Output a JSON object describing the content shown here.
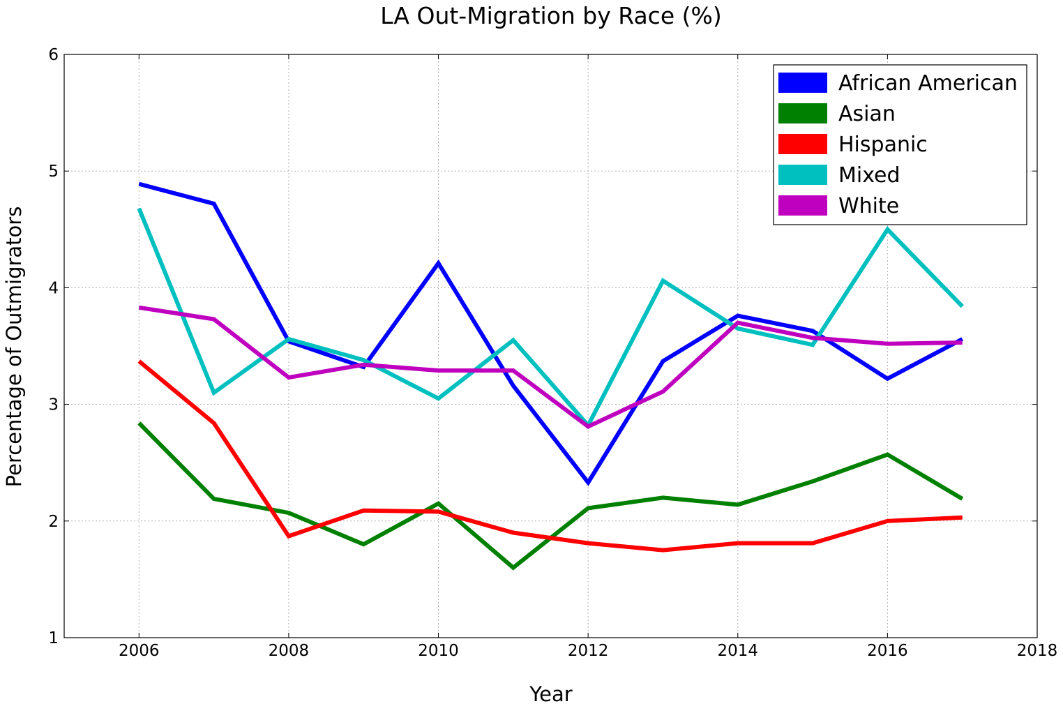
{
  "chart_data": {
    "type": "line",
    "title": "LA Out-Migration by Race (%)",
    "xlabel": "Year",
    "ylabel": "Percentage of Outmigrators",
    "xlim": [
      2005,
      2018
    ],
    "ylim": [
      1,
      6
    ],
    "x_ticks": [
      "2006",
      "2008",
      "2010",
      "2012",
      "2014",
      "2016",
      "2018"
    ],
    "y_ticks": [
      "1",
      "2",
      "3",
      "4",
      "5",
      "6"
    ],
    "grid": true,
    "legend_position": "top-right",
    "x": [
      2006,
      2007,
      2008,
      2009,
      2010,
      2011,
      2012,
      2013,
      2014,
      2015,
      2016,
      2017
    ],
    "series": [
      {
        "name": "African American",
        "color": "#0000ff",
        "values": [
          4.89,
          4.72,
          3.54,
          3.32,
          4.21,
          3.16,
          2.33,
          3.37,
          3.76,
          3.63,
          3.22,
          3.56
        ]
      },
      {
        "name": "Asian",
        "color": "#008000",
        "values": [
          2.84,
          2.19,
          2.07,
          1.8,
          2.15,
          1.6,
          2.11,
          2.2,
          2.14,
          2.34,
          2.57,
          2.19
        ]
      },
      {
        "name": "Hispanic",
        "color": "#ff0000",
        "values": [
          3.37,
          2.84,
          1.87,
          2.09,
          2.08,
          1.9,
          1.81,
          1.75,
          1.81,
          1.81,
          2.0,
          2.03
        ]
      },
      {
        "name": "Mixed",
        "color": "#00bfbf",
        "values": [
          4.68,
          3.1,
          3.56,
          3.38,
          3.05,
          3.55,
          2.82,
          4.06,
          3.65,
          3.51,
          4.5,
          3.84
        ]
      },
      {
        "name": "White",
        "color": "#bf00bf",
        "values": [
          3.83,
          3.73,
          3.23,
          3.34,
          3.29,
          3.29,
          2.81,
          3.11,
          3.7,
          3.57,
          3.52,
          3.53
        ]
      }
    ]
  }
}
